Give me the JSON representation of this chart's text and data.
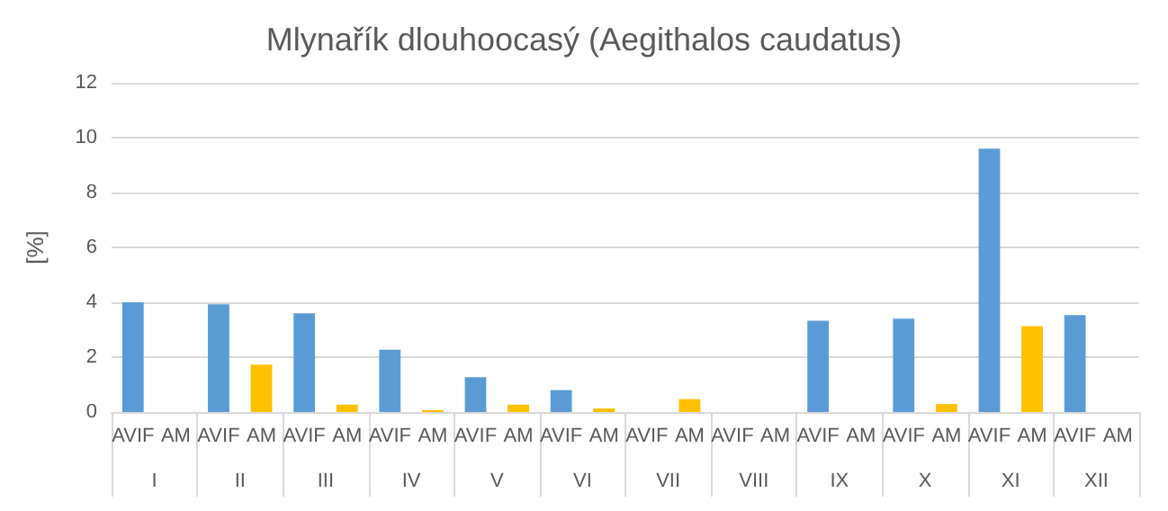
{
  "chart_data": {
    "type": "bar",
    "title": "Mlynařík dlouhoocasý (Aegithalos caudatus)",
    "ylabel": "[%]",
    "categories": [
      "I",
      "II",
      "III",
      "IV",
      "V",
      "VI",
      "VII",
      "VIII",
      "IX",
      "X",
      "XI",
      "XII"
    ],
    "series": [
      {
        "name": "AVIF",
        "color": "#5b9bd5",
        "values": [
          4.0,
          3.93,
          3.6,
          2.27,
          1.27,
          0.8,
          0,
          0,
          3.33,
          3.4,
          9.6,
          3.53
        ]
      },
      {
        "name": "AM",
        "color": "#ffc000",
        "values": [
          0,
          1.73,
          0.27,
          0.07,
          0.27,
          0.13,
          0.47,
          0,
          0,
          0.29,
          3.13,
          0
        ]
      }
    ],
    "ylim": [
      0,
      12
    ],
    "yticks": [
      0,
      2,
      4,
      6,
      8,
      10,
      12
    ],
    "grid": "y",
    "legend": false
  }
}
